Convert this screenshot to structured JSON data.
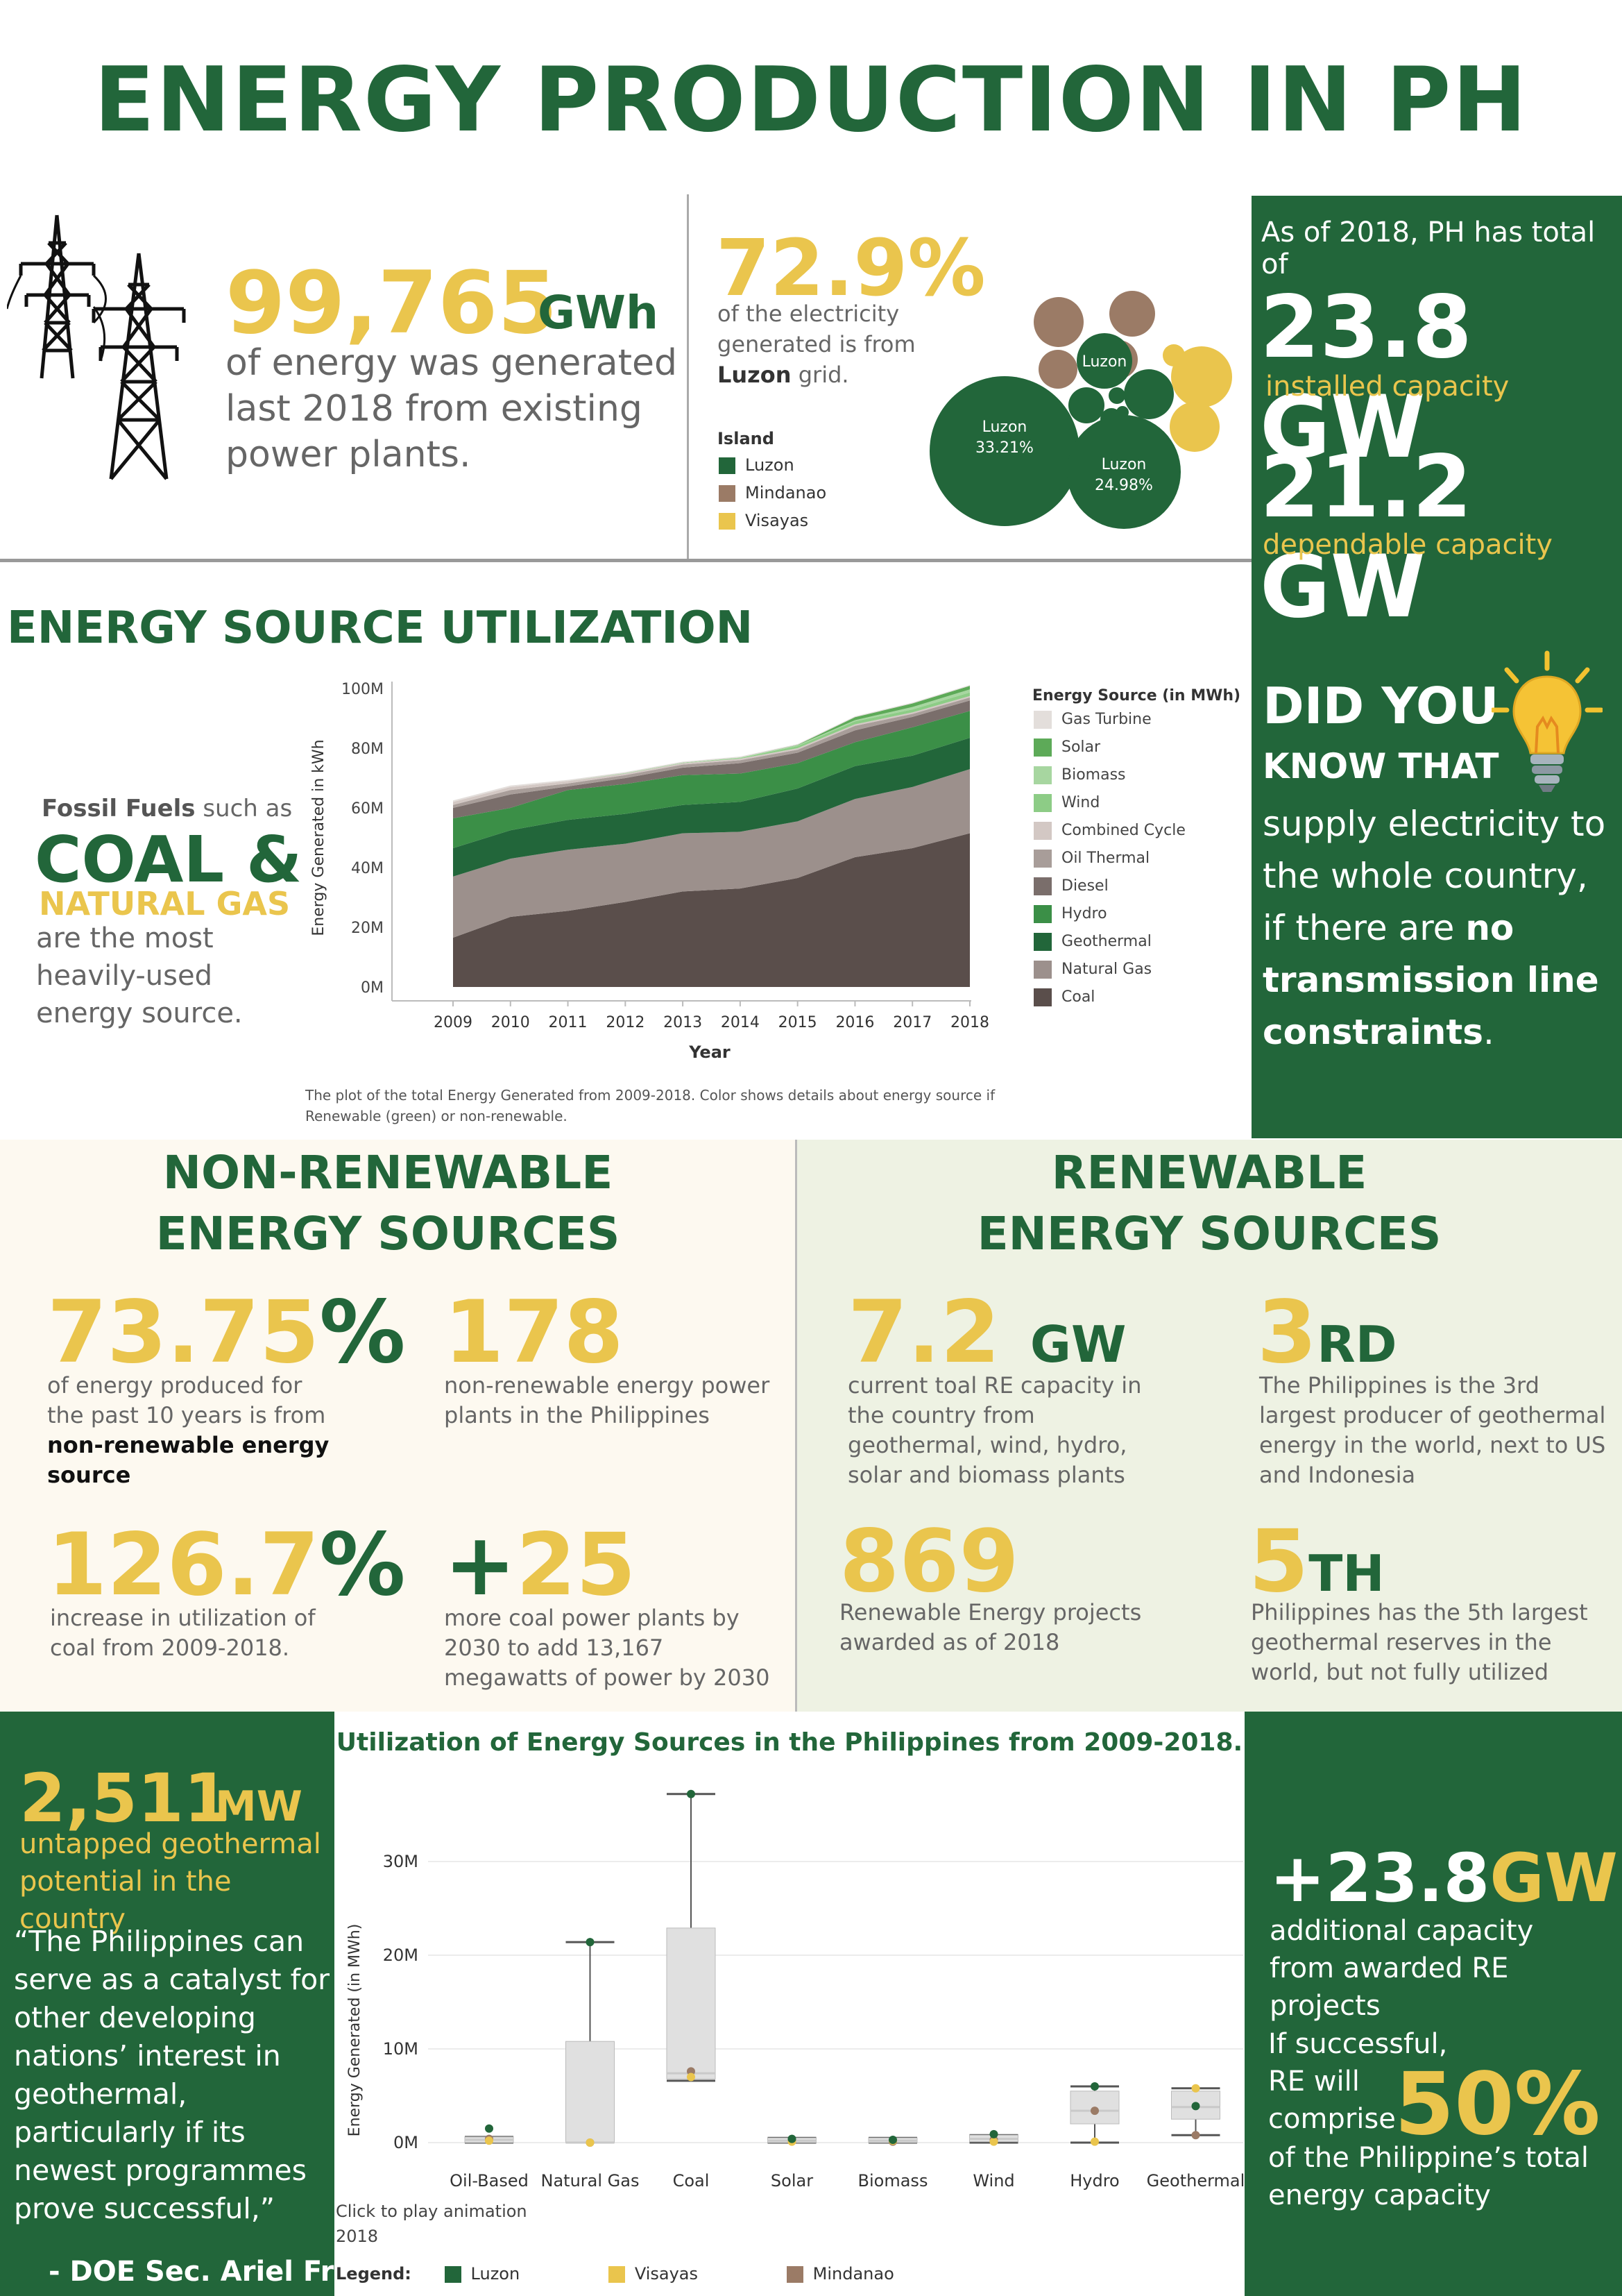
{
  "title": "ENERGY PRODUCTION IN  PH",
  "colors": {
    "green": "#22663a",
    "yellow": "#eac54d",
    "brown": "#9b7b66",
    "grey_text": "#666666"
  },
  "energy_total": {
    "value": "99,765",
    "unit": "GWh",
    "desc": "of energy was generated last 2018  from existing power plants.",
    "icon": "power-tower-icon"
  },
  "luzon_share": {
    "pct": "72.9%",
    "desc_line1": "of the electricity",
    "desc_line2": "generated is from",
    "desc_bold": "Luzon",
    "desc_line3": " grid."
  },
  "island_legend": {
    "title": "Island",
    "items": [
      {
        "label": "Luzon",
        "color": "#22663a"
      },
      {
        "label": "Mindanao",
        "color": "#9b7b66"
      },
      {
        "label": "Visayas",
        "color": "#eac54d"
      }
    ]
  },
  "bubble_labels": {
    "big": "Luzon\n33.21%",
    "big_name": "Luzon",
    "big_pct": "33.21%",
    "mid_name": "Luzon",
    "mid_pct": "24.98%",
    "small_name": "Luzon"
  },
  "capacity": {
    "asof": "As of 2018, PH has total of",
    "installed_value": "23.8 GW",
    "installed_label": "installed capacity",
    "dependable_value": "21.2 GW",
    "dependable_label": "dependable capacity"
  },
  "did_you_know": {
    "line1": "DID YOU",
    "line2": "KNOW THAT",
    "body_plain": "supply electricity to the whole country, if there are ",
    "body_bold_1": "no transmission line constraints",
    "body_end": ".",
    "icon": "light-bulb-icon"
  },
  "esu": {
    "title": "ENERGY SOURCE UTILIZATION",
    "fossil_bold": "Fossil Fuels",
    "fossil_plain": " such as",
    "coal": "COAL &",
    "gas": "NATURAL GAS",
    "desc": "are the most heavily-used energy source.",
    "caption": "The plot of the total Energy Generated from 2009-2018.  Color shows details about energy source if Renewable (green) or non-renewable."
  },
  "nonrenewable": {
    "title_1": "NON-RENEWABLE",
    "title_2": "ENERGY SOURCES",
    "stat1_val": "73.75",
    "stat1_pct": "%",
    "stat1_desc": "of energy produced for the past 10 years is from ",
    "stat1_bold": "non-renewable energy source",
    "stat2_val": "178",
    "stat2_desc": "non-renewable energy power plants in the Philippines",
    "stat3_val": "126.7",
    "stat3_pct": "%",
    "stat3_desc": "increase in utilization of coal from 2009-2018.",
    "stat4_plus": "+",
    "stat4_val": "25",
    "stat4_desc": "more coal power plants by 2030 to add 13,167 megawatts of power by 2030"
  },
  "renewable": {
    "title_1": "RENEWABLE",
    "title_2": "ENERGY SOURCES",
    "stat1_val": "7.2",
    "stat1_unit": "GW",
    "stat1_desc": "current toal RE capacity in the country from geothermal, wind, hydro, solar and biomass plants",
    "stat2_val": "3",
    "stat2_suffix": "RD",
    "stat2_desc": "The Philippines is the 3rd largest producer of geothermal energy in the world, next to US and Indonesia",
    "stat3_val": "869",
    "stat3_desc": "Renewable Energy projects awarded as of 2018",
    "stat4_val": "5",
    "stat4_suffix": "TH",
    "stat4_desc": "Philippines has the 5th largest geothermal reserves in the world, but not fully utilized"
  },
  "geothermal_potential": {
    "value": "2,511",
    "unit": "MW",
    "desc": "untapped geothermal potential in the country",
    "quote": "“The Philippines can serve as a catalyst for other developing nations’ interest in geothermal, particularly if its newest programmes prove successful,”",
    "author": "- DOE Sec. Ariel Fronda"
  },
  "re_projects": {
    "value": "+23.8",
    "unit": "GW",
    "desc": "additional capacity from awarded RE projects",
    "if_text": "If successful, RE will comprise",
    "pct": "50%",
    "desc2": "of the Philippine’s total energy capacity"
  },
  "animation": {
    "line1": "Click  to play animation",
    "line2": "2018"
  },
  "box_legend": {
    "title": "Legend:",
    "items": [
      {
        "label": "Luzon",
        "color": "#22663a"
      },
      {
        "label": "Visayas",
        "color": "#eac54d"
      },
      {
        "label": "Mindanao",
        "color": "#9b7b66"
      }
    ]
  },
  "chart_data": [
    {
      "type": "bubble",
      "title": "",
      "series": [
        {
          "name": "Luzon",
          "color": "#22663a",
          "labels": [
            "33.21%",
            "24.98%"
          ]
        },
        {
          "name": "Mindanao",
          "color": "#9b7b66"
        },
        {
          "name": "Visayas",
          "color": "#eac54d"
        }
      ]
    },
    {
      "type": "area",
      "title": "",
      "xlabel": "Year",
      "ylabel": "Energy Generated in kWh",
      "ylim": [
        0,
        100
      ],
      "y_tick_labels": [
        "0M",
        "20M",
        "40M",
        "60M",
        "80M",
        "100M"
      ],
      "y_ticks": [
        0,
        20,
        40,
        60,
        80,
        100
      ],
      "x": [
        2009,
        2010,
        2011,
        2012,
        2013,
        2014,
        2015,
        2016,
        2017,
        2018
      ],
      "legend_title": "Energy Source (in MWh)",
      "legend": [
        "Gas Turbine",
        "Solar",
        "Biomass",
        "Wind",
        "Combined Cycle",
        "Oil Thermal",
        "Diesel",
        "Hydro",
        "Geothermal",
        "Natural Gas",
        "Coal"
      ],
      "legend_colors": [
        "#e3dedb",
        "#5daa58",
        "#a7d6a0",
        "#8dcc86",
        "#d3c8c4",
        "#a89d99",
        "#7a6e6b",
        "#3b8f47",
        "#22663a",
        "#9c908c",
        "#5a4e4b"
      ],
      "series": [
        {
          "name": "Coal",
          "color": "#5a4e4b",
          "values": [
            16.5,
            23.5,
            25.5,
            28.5,
            32,
            33,
            36.5,
            43.5,
            46.5,
            51.5
          ]
        },
        {
          "name": "Natural Gas",
          "color": "#9c908c",
          "values": [
            20.5,
            19.5,
            20.5,
            19.5,
            19.5,
            19,
            19,
            19.5,
            20.5,
            21.5
          ]
        },
        {
          "name": "Geothermal",
          "color": "#22663a",
          "values": [
            9.5,
            9.5,
            10,
            10,
            9.5,
            10,
            11,
            11,
            10.5,
            10.5
          ]
        },
        {
          "name": "Hydro",
          "color": "#3b8f47",
          "values": [
            10,
            7.5,
            10,
            10,
            10,
            9.5,
            8.5,
            8,
            9.5,
            9
          ]
        },
        {
          "name": "Diesel",
          "color": "#7a6e6b",
          "values": [
            3.5,
            4.5,
            1.2,
            2,
            2.5,
            3.5,
            3.5,
            4,
            3.5,
            3.5
          ]
        },
        {
          "name": "Oil Thermal",
          "color": "#a89d99",
          "values": [
            1,
            1.5,
            1,
            1,
            1,
            1,
            1,
            1.5,
            1,
            1
          ]
        },
        {
          "name": "Combined Cycle",
          "color": "#d3c8c4",
          "values": [
            1,
            1,
            0.8,
            0.5,
            0.5,
            0.5,
            0.5,
            0.5,
            0.5,
            0.5
          ]
        },
        {
          "name": "Wind",
          "color": "#8dcc86",
          "values": [
            0,
            0,
            0,
            0.1,
            0.1,
            0.2,
            0.7,
            1,
            1,
            1.2
          ]
        },
        {
          "name": "Biomass",
          "color": "#a7d6a0",
          "values": [
            0,
            0,
            0,
            0.1,
            0.1,
            0.2,
            0.3,
            0.4,
            0.8,
            1
          ]
        },
        {
          "name": "Solar",
          "color": "#5daa58",
          "values": [
            0,
            0,
            0,
            0,
            0,
            0,
            0.1,
            1,
            1.2,
            1.2
          ]
        },
        {
          "name": "Gas Turbine",
          "color": "#e3dedb",
          "values": [
            0.5,
            0.5,
            0.4,
            0.3,
            0.3,
            0.3,
            0.3,
            0.3,
            0.3,
            0.3
          ]
        }
      ]
    },
    {
      "type": "boxplot",
      "title": "Utilization of Energy Sources in the Philippines from 2009-2018.",
      "ylabel": "Energy Generated (in MWh)",
      "ylim": [
        -1.5,
        38
      ],
      "y_tick_labels": [
        "0M",
        "10M",
        "20M",
        "30M"
      ],
      "y_ticks": [
        0,
        10,
        20,
        30
      ],
      "categories": [
        "Oil-Based",
        "Natural Gas",
        "Coal",
        "Solar",
        "Biomass",
        "Wind",
        "Hydro",
        "Geothermal"
      ],
      "boxes": [
        {
          "min": 0,
          "q1": 0,
          "median": 0.3,
          "q3": 0.6,
          "max": 0.6,
          "luzon": 1.5,
          "visayas": 0.2,
          "mindanao": 0.4
        },
        {
          "min": 0,
          "q1": 0,
          "median": 0,
          "q3": 10.8,
          "max": 21.4,
          "luzon": 21.4,
          "visayas": 0,
          "mindanao": 0
        },
        {
          "min": 6.6,
          "q1": 6.8,
          "median": 7.4,
          "q3": 22.9,
          "max": 37.2,
          "luzon": 37.2,
          "visayas": 7.0,
          "mindanao": 7.6
        },
        {
          "min": 0,
          "q1": 0,
          "median": 0.2,
          "q3": 0.5,
          "max": 0.5,
          "luzon": 0.4,
          "visayas": 0.1,
          "mindanao": 0.2
        },
        {
          "min": 0,
          "q1": 0,
          "median": 0.2,
          "q3": 0.5,
          "max": 0.5,
          "luzon": 0.3,
          "visayas": 0.2,
          "mindanao": 0.1
        },
        {
          "min": 0,
          "q1": 0.1,
          "median": 0.4,
          "q3": 0.8,
          "max": 0.8,
          "luzon": 0.9,
          "visayas": 0.1,
          "mindanao": 0.3
        },
        {
          "min": 0,
          "q1": 2.0,
          "median": 3.4,
          "q3": 5.5,
          "max": 6.0,
          "luzon": 6.0,
          "visayas": 0.1,
          "mindanao": 3.4
        },
        {
          "min": 0.8,
          "q1": 2.5,
          "median": 3.8,
          "q3": 5.5,
          "max": 5.8,
          "luzon": 3.9,
          "visayas": 5.8,
          "mindanao": 0.8
        }
      ]
    }
  ]
}
